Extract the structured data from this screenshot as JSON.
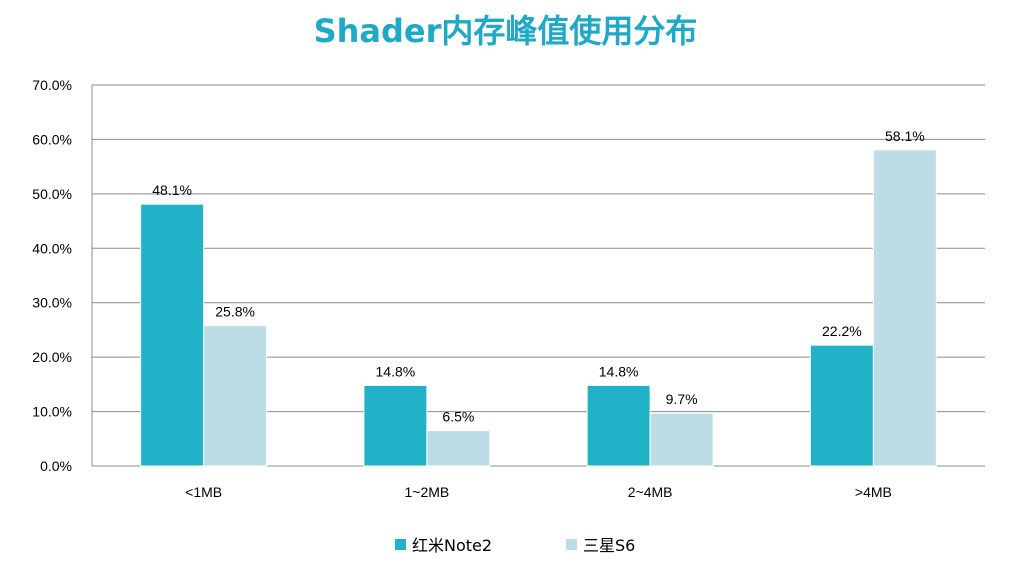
{
  "chart_data": {
    "type": "bar",
    "title": "Shader内存峰值使用分布",
    "title_color": "#1fa9c6",
    "categories": [
      "<1MB",
      "1~2MB",
      "2~4MB",
      ">4MB"
    ],
    "series": [
      {
        "name": "红米Note2",
        "values": [
          48.1,
          14.8,
          14.8,
          22.2
        ],
        "color": "#21b2c8"
      },
      {
        "name": "三星S6",
        "values": [
          25.8,
          6.5,
          9.7,
          58.1
        ],
        "color": "#bcdde5"
      }
    ],
    "value_labels": [
      [
        "48.1%",
        "14.8%",
        "14.8%",
        "22.2%"
      ],
      [
        "25.8%",
        "6.5%",
        "9.7%",
        "58.1%"
      ]
    ],
    "ylim": [
      0,
      70
    ],
    "yticks": [
      "0.0%",
      "10.0%",
      "20.0%",
      "30.0%",
      "40.0%",
      "50.0%",
      "60.0%",
      "70.0%"
    ],
    "grid": true,
    "legend_position": "bottom"
  }
}
